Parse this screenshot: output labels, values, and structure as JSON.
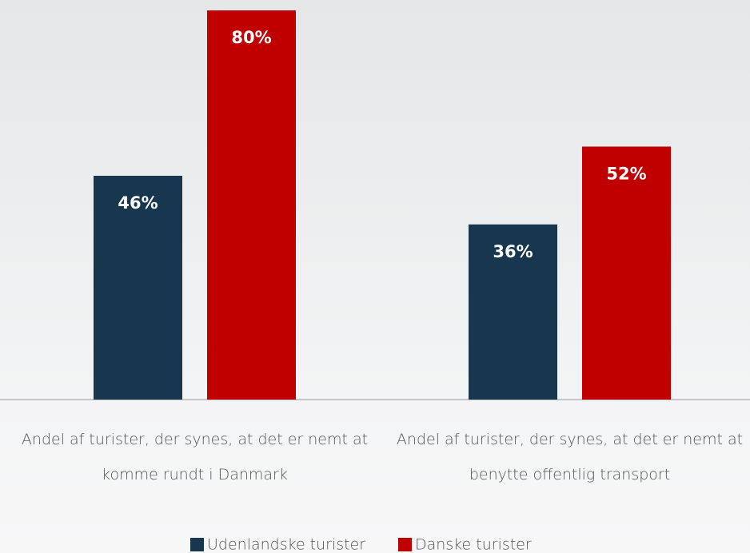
{
  "chart_data": {
    "type": "bar",
    "categories": [
      "Andel af turister, der synes, at det er nemt at komme rundt i Danmark",
      "Andel af turister, der synes, at det er nemt at benytte offentlig transport"
    ],
    "series": [
      {
        "name": "Udenlandske turister",
        "color": "#17374f",
        "values": [
          46,
          36
        ],
        "value_labels": [
          "46%",
          "36%"
        ]
      },
      {
        "name": "Danske turister",
        "color": "#c00000",
        "values": [
          80,
          52
        ],
        "value_labels": [
          "80%",
          "52%"
        ]
      }
    ]
  }
}
